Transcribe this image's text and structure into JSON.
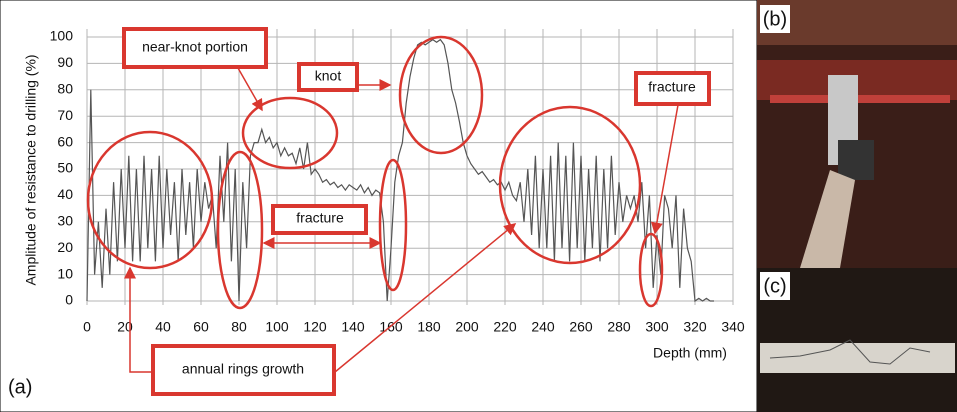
{
  "chart_data": {
    "type": "line",
    "y_label": "Amplitude of resistance to drilling (%)",
    "x_label": "Depth (mm)",
    "color": "#555555",
    "xlim": [
      0,
      340
    ],
    "ylim": [
      0,
      100
    ],
    "xticks": [
      0,
      20,
      40,
      60,
      80,
      100,
      120,
      140,
      160,
      180,
      200,
      220,
      240,
      260,
      280,
      300,
      320,
      340
    ],
    "yticks": [
      0,
      10,
      20,
      30,
      40,
      50,
      60,
      70,
      80,
      90,
      100
    ],
    "grid": true,
    "x": [
      0,
      2,
      4,
      6,
      8,
      10,
      12,
      14,
      16,
      18,
      20,
      22,
      24,
      26,
      28,
      30,
      32,
      34,
      36,
      38,
      40,
      42,
      44,
      46,
      48,
      50,
      52,
      54,
      56,
      58,
      60,
      62,
      64,
      66,
      68,
      70,
      72,
      74,
      76,
      78,
      80,
      82,
      84,
      86,
      88,
      90,
      92,
      94,
      96,
      98,
      100,
      102,
      104,
      106,
      108,
      110,
      112,
      114,
      116,
      118,
      120,
      122,
      124,
      126,
      128,
      130,
      132,
      134,
      136,
      138,
      140,
      142,
      144,
      146,
      148,
      150,
      152,
      154,
      156,
      158,
      160,
      162,
      164,
      166,
      168,
      170,
      172,
      174,
      176,
      178,
      180,
      182,
      184,
      186,
      188,
      190,
      192,
      194,
      196,
      198,
      200,
      202,
      204,
      206,
      208,
      210,
      212,
      214,
      216,
      218,
      220,
      222,
      224,
      226,
      228,
      230,
      232,
      234,
      236,
      238,
      240,
      242,
      244,
      246,
      248,
      250,
      252,
      254,
      256,
      258,
      260,
      262,
      264,
      266,
      268,
      270,
      272,
      274,
      276,
      278,
      280,
      282,
      284,
      286,
      288,
      290,
      292,
      294,
      296,
      298,
      300,
      302,
      304,
      306,
      308,
      310,
      312,
      314,
      316,
      318,
      320,
      322,
      324,
      326,
      328,
      330
    ],
    "values": [
      0,
      80,
      10,
      30,
      5,
      35,
      10,
      45,
      15,
      50,
      20,
      55,
      15,
      50,
      15,
      55,
      20,
      50,
      15,
      55,
      20,
      50,
      25,
      45,
      15,
      50,
      25,
      45,
      20,
      50,
      30,
      45,
      35,
      40,
      20,
      55,
      30,
      60,
      15,
      50,
      0,
      45,
      20,
      55,
      60,
      60,
      65,
      60,
      62,
      58,
      60,
      55,
      58,
      55,
      56,
      52,
      58,
      50,
      60,
      48,
      50,
      48,
      45,
      46,
      44,
      45,
      43,
      44,
      42,
      44,
      43,
      42,
      44,
      41,
      43,
      40,
      42,
      41,
      30,
      0,
      20,
      45,
      55,
      60,
      75,
      85,
      92,
      97,
      98,
      97,
      98,
      99,
      98,
      99,
      97,
      90,
      80,
      75,
      68,
      60,
      55,
      52,
      50,
      48,
      49,
      47,
      45,
      46,
      44,
      45,
      42,
      45,
      40,
      38,
      45,
      30,
      50,
      25,
      55,
      20,
      50,
      20,
      55,
      15,
      60,
      20,
      55,
      15,
      60,
      20,
      55,
      15,
      50,
      20,
      55,
      15,
      50,
      20,
      55,
      25,
      45,
      30,
      40,
      35,
      40,
      30,
      45,
      20,
      40,
      5,
      25,
      10,
      40,
      35,
      20,
      40,
      5,
      35,
      20,
      15,
      0,
      1,
      0,
      1,
      0,
      0
    ],
    "annotations": [
      "near-knot portion",
      "knot",
      "fracture",
      "fracture",
      "annual rings growth"
    ],
    "panel_labels": [
      "(a)",
      "(b)",
      "(c)"
    ]
  }
}
